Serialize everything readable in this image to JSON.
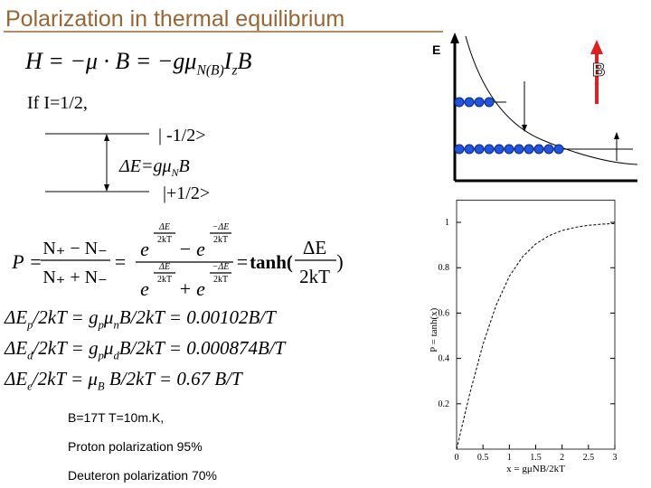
{
  "title": "Polarization in thermal equilibrium",
  "hamiltonian": [
    "H = −μ · B = −gμ",
    "N(B)",
    "I",
    "z",
    "B"
  ],
  "spin_note": "If  I=1/2,",
  "levels": {
    "upper": "| -1/2>",
    "gap": [
      "ΔE=gμ",
      "N",
      "B"
    ],
    "lower": "|+1/2>"
  },
  "energy_diagram": {
    "axis_label": "E",
    "field_label": "B"
  },
  "polarization": {
    "lhs": "P =",
    "n1": "N₊ − N₋",
    "d1": "N₊ + N₋",
    "eq": "=",
    "base": "e",
    "exp_num": "ΔE",
    "exp_neg_num": "−ΔE",
    "exp_den": "2kT",
    "minus": "−",
    "plus": "+",
    "tanh": "tanh(",
    "tanh_num": "ΔE",
    "tanh_den": "2kT",
    "close": ")"
  },
  "equations": [
    [
      "ΔE",
      "p",
      "/2kT = g",
      "p",
      "μ",
      "n",
      "B/2kT = 0.00102B/T"
    ],
    [
      "ΔE",
      "d",
      "/2kT = g",
      "p",
      "μ",
      "d",
      "B/2kT = 0.000874B/T"
    ],
    [
      "ΔE",
      "e",
      "/2kT = μ",
      "B",
      " B/2kT = 0.67 B/T"
    ]
  ],
  "conditions": [
    "B=17T   T=10m.K,",
    "Proton polarization 95%",
    "Deuteron polarization 70%"
  ],
  "chart_data": {
    "type": "line",
    "ylabel": "P = tanh(x)",
    "xlabel": "x = gμNB/2kT",
    "x": [
      0,
      0.25,
      0.5,
      0.75,
      1,
      1.25,
      1.5,
      1.75,
      2,
      2.25,
      2.5,
      2.75,
      3
    ],
    "values": [
      0,
      0.245,
      0.462,
      0.635,
      0.762,
      0.848,
      0.905,
      0.941,
      0.964,
      0.978,
      0.987,
      0.992,
      0.995
    ],
    "color": "#000000",
    "dashed": true,
    "xlim": [
      0,
      3
    ],
    "ylim": [
      0,
      1.05
    ],
    "xticks": [
      0,
      0.5,
      1,
      1.5,
      2,
      2.5,
      3
    ],
    "yticks": [
      0.2,
      0.4,
      0.6,
      0.8,
      1
    ]
  }
}
